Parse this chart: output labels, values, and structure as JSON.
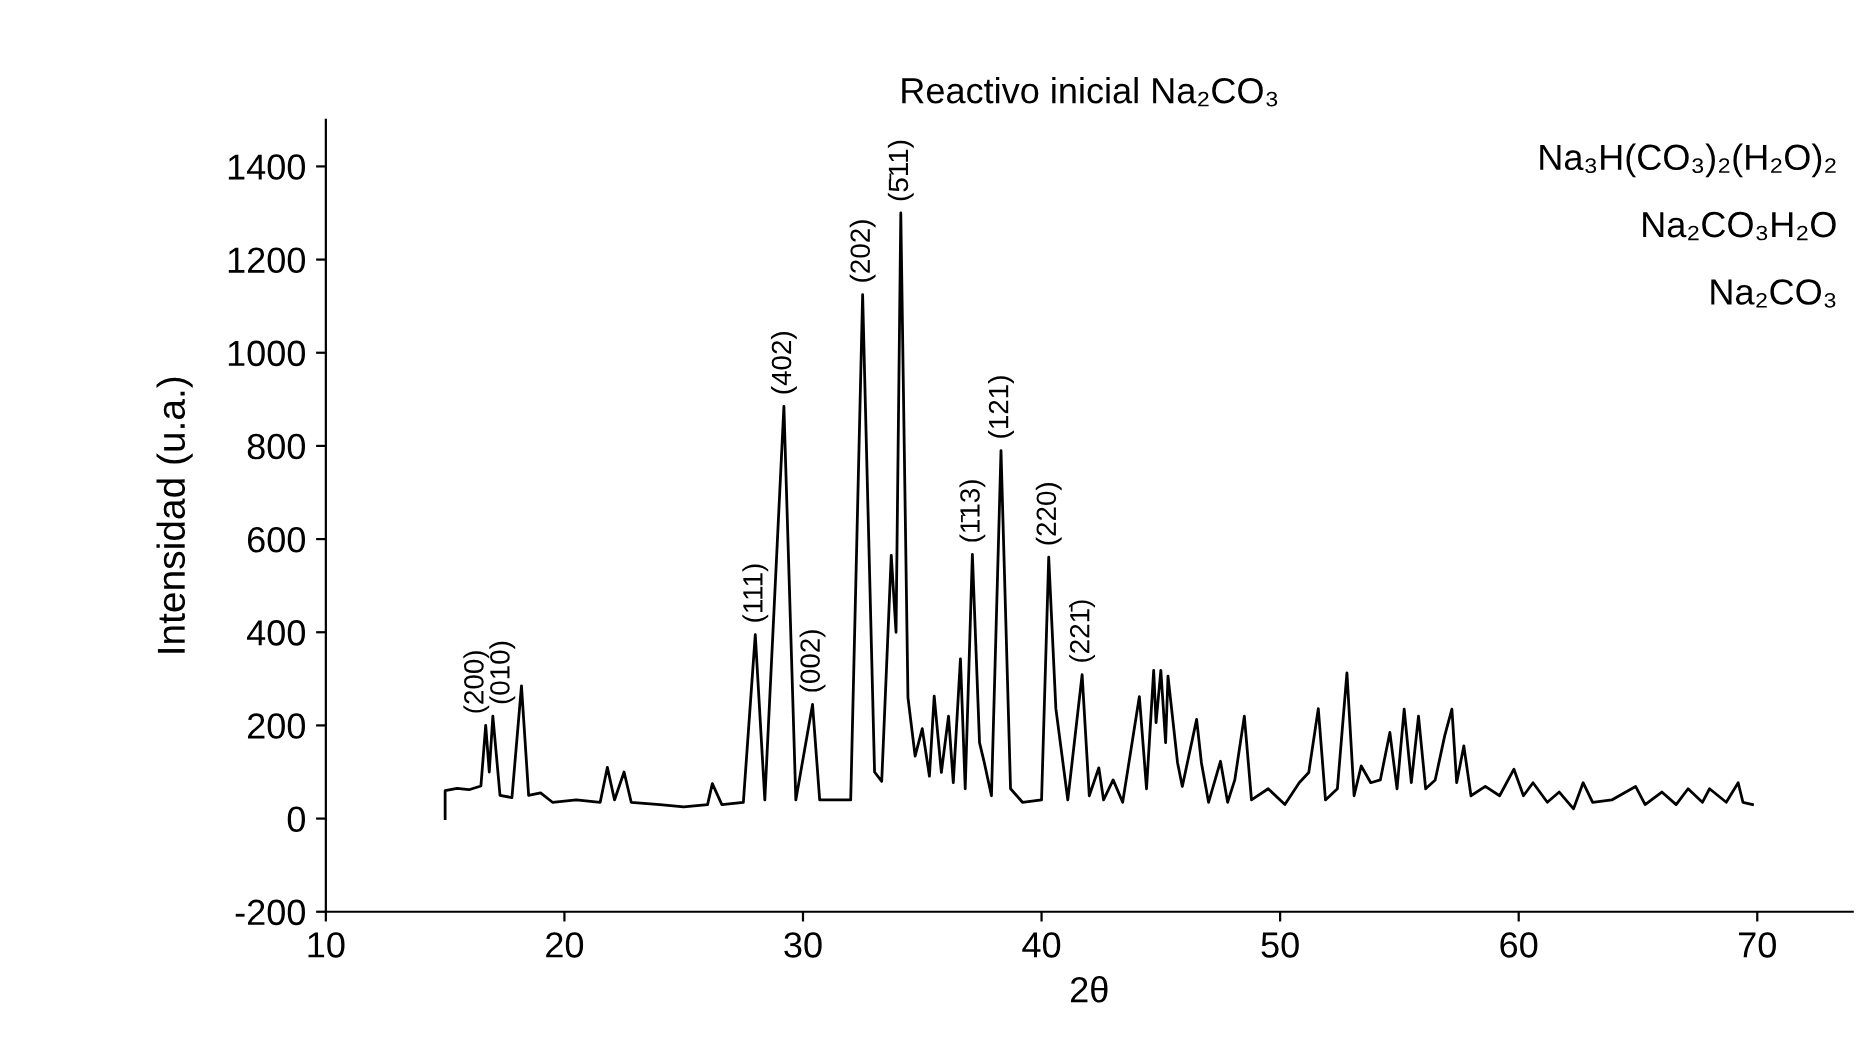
{
  "chart_data": {
    "type": "line",
    "title": "Reactivo inicial Na₂CO₃",
    "xlabel": "2θ",
    "ylabel": "Intensidad (u.a.)",
    "xlim": [
      10,
      74
    ],
    "xticks": [
      10,
      20,
      30,
      40,
      50,
      60,
      70
    ],
    "ylim": [
      -200,
      1500
    ],
    "yticks": [
      -200,
      0,
      200,
      400,
      600,
      800,
      1000,
      1200,
      1400
    ],
    "grid": false,
    "series": [
      {
        "color": "#000000",
        "x": [
          15.0,
          15.0,
          15.5,
          16.0,
          16.5,
          16.7,
          16.85,
          17.0,
          17.3,
          17.8,
          18.2,
          18.5,
          19.0,
          19.5,
          20.5,
          21.5,
          21.8,
          22.1,
          22.5,
          22.8,
          24.0,
          25.0,
          26.0,
          26.2,
          26.6,
          27.5,
          28.0,
          28.4,
          29.2,
          29.7,
          30.4,
          30.7,
          32.0,
          32.5,
          33.0,
          33.3,
          33.7,
          33.9,
          34.1,
          34.4,
          34.7,
          35.0,
          35.3,
          35.5,
          35.8,
          36.1,
          36.3,
          36.6,
          36.8,
          37.1,
          37.4,
          37.6,
          37.9,
          38.3,
          38.7,
          39.2,
          40.0,
          40.3,
          40.6,
          41.1,
          41.7,
          42.0,
          42.4,
          42.6,
          43.0,
          43.4,
          44.1,
          44.4,
          44.7,
          44.8,
          45.0,
          45.2,
          45.3,
          45.7,
          45.9,
          46.5,
          46.7,
          47.0,
          47.5,
          47.8,
          48.1,
          48.5,
          48.8,
          49.5,
          50.2,
          50.8,
          51.2,
          51.6,
          51.9,
          52.4,
          52.8,
          53.1,
          53.4,
          53.8,
          54.2,
          54.6,
          54.9,
          55.2,
          55.5,
          55.8,
          56.1,
          56.5,
          56.9,
          57.2,
          57.4,
          57.7,
          58.0,
          58.6,
          59.2,
          59.8,
          60.2,
          60.6,
          61.2,
          61.7,
          62.3,
          62.7,
          63.1,
          63.9,
          64.9,
          65.3,
          66.0,
          66.6,
          67.1,
          67.7,
          68.0,
          68.7,
          69.2,
          69.4,
          69.8
        ],
        "values": [
          0,
          60,
          65,
          62,
          70,
          200,
          100,
          220,
          50,
          45,
          285,
          50,
          55,
          35,
          40,
          35,
          110,
          40,
          100,
          35,
          30,
          25,
          30,
          75,
          30,
          35,
          395,
          40,
          885,
          40,
          245,
          40,
          40,
          1125,
          100,
          80,
          565,
          400,
          1300,
          260,
          134,
          193,
          91,
          263,
          99,
          220,
          77,
          343,
          64,
          567,
          163,
          120,
          49,
          790,
          64,
          35,
          40,
          561,
          236,
          40,
          309,
          49,
          109,
          40,
          83,
          35,
          262,
          64,
          318,
          206,
          318,
          163,
          306,
          120,
          69,
          213,
          120,
          35,
          123,
          35,
          83,
          220,
          40,
          64,
          30,
          77,
          99,
          236,
          40,
          64,
          313,
          49,
          113,
          77,
          83,
          185,
          64,
          235,
          77,
          220,
          64,
          83,
          178,
          235,
          77,
          156,
          49,
          69,
          49,
          106,
          49,
          77,
          35,
          57,
          21,
          77,
          35,
          40,
          69,
          30,
          57,
          30,
          64,
          35,
          64,
          35,
          77,
          35,
          30
        ]
      }
    ],
    "annotations": [
      {
        "text": "(200)",
        "x": 16.7,
        "y": 200
      },
      {
        "text": "(010)",
        "x": 17.0,
        "y": 220
      },
      {
        "text": "(111)",
        "x": 28.0,
        "y": 395
      },
      {
        "text": "(402)",
        "x": 29.2,
        "y": 885
      },
      {
        "text": "(002)",
        "x": 30.4,
        "y": 245
      },
      {
        "text": "(202)",
        "x": 32.5,
        "y": 1125
      },
      {
        "text": "(5̄11)",
        "x": 34.1,
        "y": 1300
      },
      {
        "text": "(1̄13)",
        "x": 37.1,
        "y": 567
      },
      {
        "text": "(121)",
        "x": 38.3,
        "y": 790
      },
      {
        "text": "(220)",
        "x": 40.3,
        "y": 561
      },
      {
        "text": "(221̄)",
        "x": 41.7,
        "y": 309
      },
      "Na₃H(CO₃)₂(H₂O)₂",
      "Na₂CO₃H₂O",
      "Na₂CO₃"
    ]
  }
}
